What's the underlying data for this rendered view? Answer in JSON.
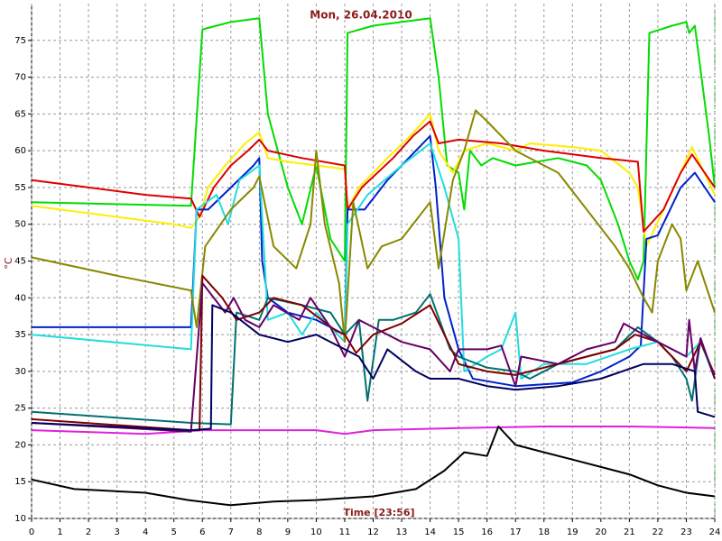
{
  "chart_data": {
    "type": "line",
    "title": "Mon, 26.04.2010",
    "x_label": "Time [23:56]",
    "y_label": "°C",
    "xlim": [
      0,
      24
    ],
    "xticks": [
      0,
      1,
      2,
      3,
      4,
      5,
      6,
      7,
      8,
      9,
      10,
      11,
      12,
      13,
      14,
      15,
      16,
      17,
      18,
      19,
      20,
      21,
      22,
      23,
      24
    ],
    "ylim": [
      10,
      80
    ],
    "yticks": [
      10,
      15,
      20,
      25,
      30,
      35,
      40,
      45,
      50,
      55,
      60,
      65,
      70,
      75
    ],
    "grid": true,
    "series": [
      {
        "color": "#00dd00",
        "x": [
          0,
          5.6,
          6,
          6.5,
          7,
          8,
          8.3,
          9,
          9.5,
          10,
          10.5,
          11,
          11.1,
          12,
          14,
          14.3,
          14.6,
          15,
          15.2,
          15.4,
          15.8,
          16.2,
          17,
          18.5,
          19.5,
          20,
          20.6,
          21,
          21.3,
          21.5,
          21.7,
          22.5,
          23,
          23.1,
          23.3,
          23.8,
          24
        ],
        "values": [
          53,
          52.5,
          76.5,
          77,
          77.5,
          78,
          65,
          55,
          50,
          58,
          48,
          45,
          76,
          77,
          78,
          70,
          58,
          57,
          52,
          60,
          58,
          59,
          58,
          59,
          58,
          56,
          50,
          45,
          42.5,
          45,
          76,
          77,
          77.5,
          76,
          77,
          62,
          55
        ]
      },
      {
        "color": "#ffee00",
        "x": [
          0,
          5,
          5.6,
          5.9,
          6.2,
          6.8,
          7.5,
          8,
          8.3,
          9,
          10,
          11,
          11.1,
          11.5,
          12.5,
          13.3,
          14,
          14.3,
          14.8,
          15.2,
          16,
          17,
          17.5,
          19,
          20,
          21,
          21.3,
          21.6,
          22.2,
          22.8,
          23.2,
          24
        ],
        "values": [
          52.5,
          50,
          49.5,
          51,
          55,
          58,
          61,
          62.5,
          59,
          58.5,
          58,
          57.5,
          52,
          55,
          59,
          62,
          65,
          60,
          57,
          60,
          61,
          60,
          61,
          60.5,
          60,
          57,
          55,
          47,
          52,
          57,
          60.5,
          54
        ]
      },
      {
        "color": "#dd0000",
        "x": [
          0,
          2,
          4,
          5.6,
          5.9,
          6.4,
          7,
          7.6,
          8,
          8.3,
          9.5,
          11,
          11.1,
          11.6,
          12.7,
          13.4,
          14,
          14.3,
          15,
          16.5,
          18,
          20,
          21.3,
          21.5,
          22.2,
          22.8,
          23.2,
          24
        ],
        "values": [
          56,
          55,
          54,
          53.5,
          51,
          55,
          58,
          60,
          61.5,
          60,
          59,
          58,
          52,
          55,
          59,
          62,
          64,
          61,
          61.5,
          61,
          60,
          59,
          58.5,
          49,
          52,
          57,
          59.5,
          55
        ]
      },
      {
        "color": "#0022cc",
        "x": [
          0,
          5.6,
          5.8,
          6.2,
          7,
          7.8,
          8,
          8.1,
          8.3,
          9,
          10,
          11,
          11.1,
          11.7,
          12.5,
          13.5,
          14,
          14.2,
          14.5,
          15,
          15.5,
          17,
          19,
          20,
          21,
          21.4,
          21.6,
          22,
          22.8,
          23.3,
          24
        ],
        "values": [
          36,
          36,
          52,
          52,
          55,
          58,
          59,
          45,
          40,
          38,
          37,
          35,
          52,
          52,
          56,
          60,
          62,
          55,
          40,
          33,
          29,
          28,
          28.5,
          30,
          32,
          33.5,
          48,
          48.5,
          55,
          57,
          53
        ]
      },
      {
        "color": "#22dddd",
        "x": [
          0,
          5.6,
          5.8,
          6.5,
          6.9,
          7.3,
          8,
          8.3,
          9,
          9.5,
          10,
          11,
          11.1,
          11.8,
          13,
          14,
          14.5,
          15,
          15.2,
          16,
          16.5,
          17,
          17.2,
          18,
          19.5,
          21,
          22,
          22.5,
          23,
          23.5,
          24
        ],
        "values": [
          35,
          33,
          52,
          54,
          50,
          56,
          58,
          37,
          38,
          35,
          38,
          34,
          50,
          54,
          58,
          61,
          55,
          48,
          30,
          32,
          33,
          38,
          29,
          31,
          31,
          33,
          34,
          33,
          32,
          34,
          29
        ]
      },
      {
        "color": "#888800",
        "x": [
          0,
          3,
          5.6,
          5.8,
          6.1,
          7,
          7.8,
          8,
          8.5,
          9.3,
          9.8,
          10,
          10.3,
          10.8,
          11,
          11.3,
          11.8,
          12.3,
          13,
          14,
          14.3,
          14.8,
          15.2,
          15.6,
          16,
          17,
          18.5,
          19.5,
          20.5,
          21,
          21.5,
          21.8,
          22,
          22.5,
          22.8,
          23,
          23.4,
          24
        ],
        "values": [
          45.5,
          43,
          41,
          36,
          47,
          52,
          55,
          56.5,
          47,
          44,
          50,
          60,
          50,
          42,
          34,
          53,
          44,
          47,
          48,
          53,
          44,
          56,
          60,
          65.5,
          64,
          60,
          57,
          52,
          47,
          44,
          40,
          38,
          45,
          50,
          48,
          41,
          45,
          38
        ]
      },
      {
        "color": "#dd22dd",
        "x": [
          0,
          4,
          6,
          10,
          11,
          12,
          15,
          18,
          21,
          24
        ],
        "values": [
          22,
          21.5,
          22,
          22,
          21.5,
          22,
          22.3,
          22.5,
          22.5,
          22.3
        ]
      },
      {
        "color": "#000000",
        "x": [
          0,
          1.5,
          4,
          5.5,
          7,
          8.5,
          10,
          12,
          13.5,
          14.5,
          15.2,
          16,
          16.4,
          17,
          18,
          19,
          20,
          21,
          22,
          23,
          24
        ],
        "values": [
          15.3,
          14,
          13.5,
          12.5,
          11.8,
          12.3,
          12.5,
          13,
          14,
          16.5,
          19,
          18.5,
          22.5,
          20,
          19,
          18,
          17,
          16,
          14.5,
          13.5,
          13
        ]
      },
      {
        "color": "#007070",
        "x": [
          0,
          5.6,
          7,
          7.2,
          8,
          8.3,
          9.5,
          10.5,
          11,
          11.5,
          11.8,
          12.2,
          12.7,
          13.5,
          14,
          14.7,
          15,
          16,
          17,
          17.5,
          18.5,
          19.5,
          20.5,
          21.3,
          22,
          22.5,
          23,
          23.2,
          23.5,
          24
        ],
        "values": [
          24.5,
          23,
          22.8,
          38,
          37,
          40,
          39,
          38,
          35,
          37,
          26,
          37,
          37,
          38,
          40.5,
          33,
          32,
          30.5,
          30,
          29,
          31,
          32,
          33,
          36,
          34,
          32,
          29,
          26,
          34.5,
          29
        ]
      },
      {
        "color": "#800000",
        "x": [
          0,
          5.6,
          5.9,
          6,
          6.7,
          7.2,
          8,
          8.5,
          9.5,
          10.7,
          11,
          11.4,
          12,
          13,
          14,
          14.5,
          15,
          16,
          17,
          17.5,
          18.5,
          19.5,
          20.5,
          21.2,
          22,
          22.5,
          23,
          23.5,
          24
        ],
        "values": [
          23.5,
          22,
          22,
          43,
          40,
          37,
          38,
          40,
          39,
          35.5,
          35,
          32.5,
          35,
          36.5,
          39,
          35,
          31,
          30,
          29.5,
          30,
          31,
          32,
          33,
          35,
          34,
          32,
          30,
          34,
          29.5
        ]
      },
      {
        "color": "#660066",
        "x": [
          0,
          5.6,
          6,
          6.8,
          7.1,
          7.5,
          8,
          8.5,
          9.4,
          9.8,
          10.5,
          11,
          11.5,
          12,
          13,
          14,
          14.7,
          15,
          16,
          16.5,
          17,
          17.2,
          18.5,
          19.5,
          20.5,
          20.8,
          21.5,
          22,
          23,
          23.1,
          23.3,
          23.5,
          24
        ],
        "values": [
          23,
          21.8,
          42,
          38,
          40,
          37,
          36,
          39,
          37,
          40,
          36,
          32,
          37,
          36,
          34,
          33,
          30,
          33,
          33,
          33.5,
          28,
          32,
          31,
          33,
          34,
          36.5,
          35,
          34,
          32,
          37,
          30,
          34.5,
          29
        ]
      },
      {
        "color": "#000060",
        "x": [
          0,
          5.6,
          6.3,
          6.35,
          7,
          8,
          9,
          10,
          11,
          11.5,
          12,
          12.5,
          13.5,
          14,
          15,
          16,
          17,
          18.5,
          20,
          21.5,
          22.5,
          23.3,
          23.4,
          24
        ],
        "values": [
          23,
          22,
          22.2,
          39,
          38,
          35,
          34,
          35,
          33,
          32,
          29,
          33,
          30,
          29,
          29,
          28,
          27.5,
          28,
          29,
          31,
          31,
          30,
          24.5,
          23.8
        ]
      }
    ]
  }
}
